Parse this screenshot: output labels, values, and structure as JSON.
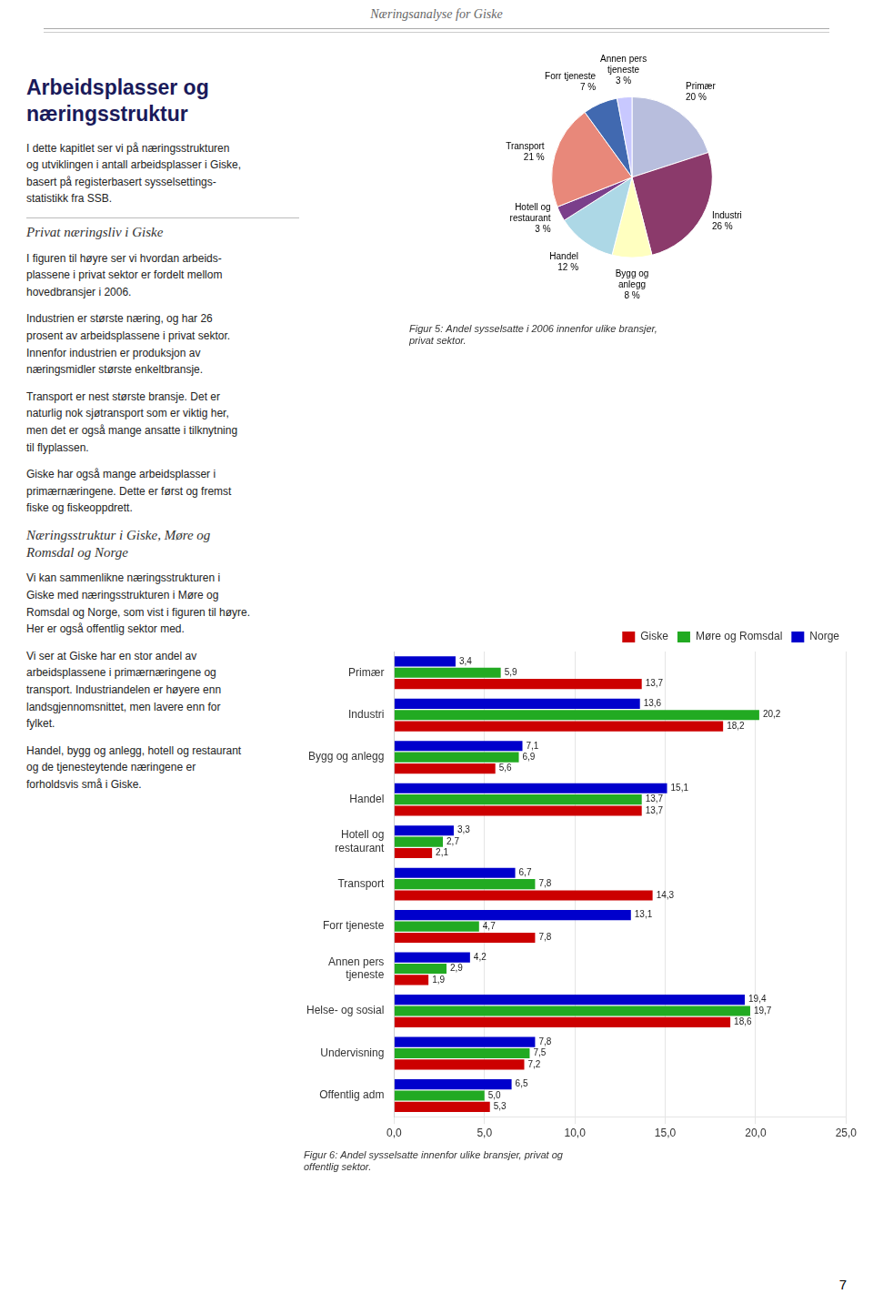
{
  "header": "Næringsanalyse for Giske",
  "page_number": "7",
  "sections": [
    {
      "title": "Arbeidsplasser og\nnæringsstruktur",
      "paragraphs": [
        "I dette kapitlet ser vi på næringsstrukturen\nog utviklingen i antall arbeidsplasser i Giske,\nbasert på registerbasert sysselsettings-\nstatistikk fra SSB."
      ]
    },
    {
      "title": "Privat næringsliv i Giske",
      "paragraphs": [
        "I figuren til høyre ser vi hvordan arbeids-\nplassene i privat sektor er fordelt mellom\nhovedbransjer i 2006.",
        "Industrien er største næring, og har 26\nprosent av arbeidsplassene i privat sektor.\nInnenfor industrien er produksjon av\nnæringsmidler største enkeltbransje.",
        "Transport er nest største bransje. Det er\nnaturlig nok sjøtransport som er viktig her,\nmen det er også mange ansatte i tilknytning\ntil flyplassen.",
        "Giske har også mange arbeidsplasser i\nprimærnæringene. Dette er først og fremst\nfiske og fiskeoppdrett."
      ]
    },
    {
      "title": "Næringsstruktur i Giske, Møre og\nRomsdal og Norge",
      "paragraphs": [
        "Vi kan sammenlikne næringsstrukturen i\nGiske med næringsstrukturen i Møre og\nRomsdal og Norge, som vist i figuren til høyre.\nHer er også offentlig sektor med.",
        "Vi ser at Giske har en stor andel av\narbeidsplassene i primærnæringene og\ntransport. Industriandelen er høyere enn\nlandsgjennomsnittet, men lavere enn for\nfylket.",
        "Handel, bygg og anlegg, hotell og restaurant\nog de tjenesteytende næringene er\nforholdsvis små i Giske."
      ]
    }
  ],
  "chart_data": [
    {
      "type": "pie",
      "title": "Figur 5: Andel sysselsatte i 2006 innenfor ulike bransjer,\nprivat sektor.",
      "categories": [
        "Primær",
        "Industri",
        "Bygg og\nanlegg",
        "Handel",
        "Hotell og\nrestaurant",
        "Transport",
        "Forr tjeneste",
        "Annen pers\ntjeneste"
      ],
      "values": [
        20,
        26,
        8,
        12,
        3,
        21,
        7,
        3
      ],
      "value_labels": [
        "20 %",
        "26 %",
        "8 %",
        "12 %",
        "3 %",
        "21 %",
        "7 %",
        "3 %"
      ],
      "colors": [
        "#b8bedd",
        "#8b3a6b",
        "#ffffc0",
        "#add8e6",
        "#7b3f8b",
        "#e8887a",
        "#4169b0",
        "#c8c8ff"
      ],
      "data_labels": true
    },
    {
      "type": "bar",
      "orientation": "horizontal",
      "title": "Figur 6: Andel sysselsatte innenfor ulike bransjer, privat og\noffentlig sektor.",
      "categories": [
        "Offentlig adm",
        "Undervisning",
        "Helse- og sosial",
        "Annen pers\ntjeneste",
        "Forr tjeneste",
        "Transport",
        "Hotell og\nrestaurant",
        "Handel",
        "Bygg og anlegg",
        "Industri",
        "Primær"
      ],
      "series": [
        {
          "name": "Giske",
          "color": "#cc0000",
          "values": [
            5.3,
            7.2,
            18.6,
            1.9,
            7.8,
            14.3,
            2.1,
            13.7,
            5.6,
            18.2,
            13.7
          ],
          "value_labels": [
            "5,3",
            "7,2",
            "18,6",
            "1,9",
            "7,8",
            "14,3",
            "2,1",
            "13,7",
            "5,6",
            "18,2",
            "13,7"
          ]
        },
        {
          "name": "Møre og Romsdal",
          "color": "#22aa22",
          "values": [
            5.0,
            7.5,
            19.7,
            2.9,
            4.7,
            7.8,
            2.7,
            13.7,
            6.9,
            20.2,
            5.9
          ],
          "value_labels": [
            "5,0",
            "7,5",
            "19,7",
            "2,9",
            "4,7",
            "7,8",
            "2,7",
            "13,7",
            "6,9",
            "20,2",
            "5,9"
          ]
        },
        {
          "name": "Norge",
          "color": "#0000cc",
          "values": [
            6.5,
            7.8,
            19.4,
            4.2,
            13.1,
            6.7,
            3.3,
            15.1,
            7.1,
            13.6,
            3.4
          ],
          "value_labels": [
            "6,5",
            "7,8",
            "19,4",
            "4,2",
            "13,1",
            "6,7",
            "3,3",
            "15,1",
            "7,1",
            "13,6",
            "3,4"
          ]
        }
      ],
      "xlim": [
        0,
        25
      ],
      "xticks": [
        {
          "value": 0,
          "label": "0,0"
        },
        {
          "value": 5,
          "label": "5,0"
        },
        {
          "value": 10,
          "label": "10,0"
        },
        {
          "value": 15,
          "label": "15,0"
        },
        {
          "value": 20,
          "label": "20,0"
        },
        {
          "value": 25,
          "label": "25,0"
        }
      ],
      "grid": true,
      "legend": "upper right",
      "data_labels": true
    }
  ]
}
